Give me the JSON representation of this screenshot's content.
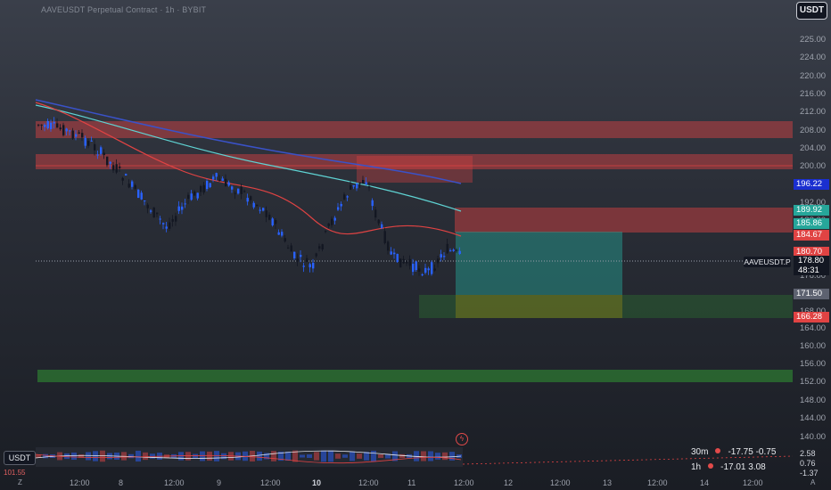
{
  "title": "AAVEUSDT Perpetual Contract · 1h · BYBIT",
  "currency_button": "USDT",
  "symbol_tag": "AAVEUSDT.P",
  "current_price": "178.80",
  "countdown": "48:31",
  "price_axis": [
    "225.00",
    "224.00",
    "220.00",
    "216.00",
    "212.00",
    "208.00",
    "204.00",
    "200.00",
    "192.00",
    "188.00",
    "176.00",
    "168.00",
    "164.00",
    "160.00",
    "156.00",
    "152.00",
    "148.00",
    "144.00",
    "140.00"
  ],
  "price_tags": [
    {
      "label": "196.22",
      "color": "#1a2fd0"
    },
    {
      "label": "189.92",
      "color": "#26a69a"
    },
    {
      "label": "185.86",
      "color": "#26a69a"
    },
    {
      "label": "184.67",
      "color": "#e04343"
    },
    {
      "label": "180.70",
      "color": "#e04343"
    },
    {
      "label": "171.50",
      "color": "#5d6270"
    },
    {
      "label": "166.28",
      "color": "#e04343"
    }
  ],
  "time_axis": [
    {
      "label": "12:00",
      "bold": false
    },
    {
      "label": "8",
      "bold": false
    },
    {
      "label": "12:00",
      "bold": false
    },
    {
      "label": "9",
      "bold": false
    },
    {
      "label": "12:00",
      "bold": false
    },
    {
      "label": "10",
      "bold": true
    },
    {
      "label": "12:00",
      "bold": false
    },
    {
      "label": "11",
      "bold": false
    },
    {
      "label": "12:00",
      "bold": false
    },
    {
      "label": "12",
      "bold": false
    },
    {
      "label": "12:00",
      "bold": false
    },
    {
      "label": "13",
      "bold": false
    },
    {
      "label": "12:00",
      "bold": false
    },
    {
      "label": "14",
      "bold": false
    },
    {
      "label": "12:00",
      "bold": false
    }
  ],
  "corner_left": "Z",
  "corner_right": "A",
  "indicator": {
    "currency": "USDT",
    "left_value": "101.55",
    "axis_values": [
      "2.58",
      "0.76",
      "-1.37"
    ],
    "rows": [
      {
        "timeframe": "30m",
        "v1": "-17.75",
        "v2": "-0.75"
      },
      {
        "timeframe": "1h",
        "v1": "-17.01",
        "v2": "3.08"
      }
    ]
  },
  "colors": {
    "bull": "#2962ff",
    "bear": "#131722",
    "zone_red": "#e04343",
    "zone_green": "#2e7d32",
    "teal": "#26a69a"
  }
}
